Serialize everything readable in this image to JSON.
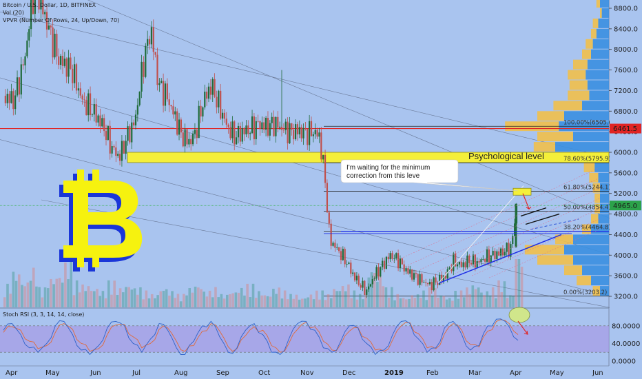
{
  "legend": {
    "symbol": "Bitcoin / U.S. Dollar, 1D, BITFINEX",
    "volume": "Vol (20)",
    "vpvr": "VPVR (Number Of Rows, 24, Up/Down, 70)",
    "stoch": "Stoch RSI (3, 3, 14, 14, close)"
  },
  "annotations": {
    "callout": [
      "I'm waiting for the minimum",
      "correction from this leve"
    ],
    "psychological": "Psychological level"
  },
  "colors": {
    "background": "#a9c4ef",
    "up": "#1f6b3a",
    "down": "#c0504d",
    "accent_blue": "#1f2ee6",
    "vpvr_up": "#3a8fe0",
    "vpvr_down": "#f1c04a",
    "stoch_k": "#2d62c9",
    "stoch_d": "#e06a3a",
    "resistance": "#e02424",
    "zone": "#f4ef3a",
    "logo_fill": "#f6f20f",
    "logo_shadow": "#1a36d8"
  },
  "chart_data": {
    "type": "candlestick",
    "price_axis": {
      "ticks": [
        "8800.0",
        "8400.0",
        "8000.0",
        "7600.0",
        "7200.0",
        "6800.0",
        "6400.0",
        "6000.0",
        "5600.0",
        "5200.0",
        "4800.0",
        "4400.0",
        "4000.0",
        "3600.0",
        "3200.0"
      ],
      "tick_values": [
        8800,
        8400,
        8000,
        7600,
        7200,
        6800,
        6400,
        6000,
        5600,
        5200,
        4800,
        4400,
        4000,
        3600,
        3200
      ],
      "range": [
        3000,
        9000
      ],
      "last_price": "4965.0",
      "resistance_price": "6461.5"
    },
    "stoch_axis": {
      "ticks": [
        "80.0000",
        "40.0000",
        "0.0000"
      ],
      "range": [
        0,
        100
      ]
    },
    "x_axis": {
      "labels": [
        "Apr",
        "May",
        "Jun",
        "Jul",
        "Aug",
        "Sep",
        "Oct",
        "Nov",
        "Dec",
        "2019",
        "Feb",
        "Mar",
        "Apr",
        "May",
        "Jun"
      ],
      "bold_label": "2019"
    },
    "fibonacci": [
      {
        "label": "100.00%(6505.6)",
        "value": 6505.6
      },
      {
        "label": "78.60%(5795.9)",
        "value": 5795.9
      },
      {
        "label": "61.80%(5244.1)",
        "value": 5244.1
      },
      {
        "label": "50.00%(4854.4)",
        "value": 4854.4
      },
      {
        "label": "38.20%(4464.8)",
        "value": 4464.8
      },
      {
        "label": "0.00%(3203.2)",
        "value": 3203.2
      }
    ],
    "psychological_zone": [
      5800,
      6000
    ],
    "trend_path": [
      [
        0,
        7100
      ],
      [
        4,
        7000
      ],
      [
        8,
        7800
      ],
      [
        12,
        9300
      ],
      [
        16,
        8600
      ],
      [
        21,
        7800
      ],
      [
        26,
        7600
      ],
      [
        30,
        7000
      ],
      [
        34,
        6800
      ],
      [
        38,
        6500
      ],
      [
        41,
        6100
      ],
      [
        44,
        5900
      ],
      [
        47,
        6300
      ],
      [
        50,
        6600
      ],
      [
        53,
        7700
      ],
      [
        56,
        8400
      ],
      [
        59,
        7300
      ],
      [
        62,
        7100
      ],
      [
        65,
        6700
      ],
      [
        68,
        6300
      ],
      [
        71,
        6200
      ],
      [
        73,
        6400
      ],
      [
        76,
        7000
      ],
      [
        79,
        7300
      ],
      [
        82,
        6900
      ],
      [
        85,
        6500
      ],
      [
        88,
        6300
      ],
      [
        91,
        6400
      ],
      [
        94,
        6450
      ],
      [
        97,
        6550
      ],
      [
        100,
        6500
      ],
      [
        103,
        6550
      ],
      [
        106,
        6460
      ],
      [
        109,
        6400
      ],
      [
        112,
        6420
      ],
      [
        115,
        6370
      ],
      [
        118,
        6400
      ],
      [
        120,
        6300
      ],
      [
        122,
        5600
      ],
      [
        124,
        4300
      ],
      [
        127,
        4100
      ],
      [
        130,
        3900
      ],
      [
        133,
        3600
      ],
      [
        136,
        3400
      ],
      [
        138,
        3300
      ],
      [
        141,
        3600
      ],
      [
        144,
        3800
      ],
      [
        147,
        4000
      ],
      [
        150,
        3900
      ],
      [
        153,
        3700
      ],
      [
        156,
        3600
      ],
      [
        159,
        3500
      ],
      [
        162,
        3420
      ],
      [
        165,
        3500
      ],
      [
        168,
        3600
      ],
      [
        171,
        3880
      ],
      [
        174,
        3800
      ],
      [
        177,
        3900
      ],
      [
        180,
        3850
      ],
      [
        183,
        3950
      ],
      [
        186,
        4000
      ],
      [
        189,
        4050
      ],
      [
        191,
        4100
      ],
      [
        193,
        4150
      ],
      [
        195,
        4965
      ]
    ],
    "volume_path": [
      0.35,
      0.55,
      0.4,
      0.6,
      0.3,
      0.45,
      0.5,
      0.7,
      0.4,
      0.35,
      0.3,
      0.25,
      0.4,
      0.3,
      0.35,
      0.3,
      0.25,
      0.2,
      0.3,
      0.25,
      0.2,
      0.3,
      0.35,
      0.25,
      0.3,
      0.2,
      0.25,
      0.3,
      0.35,
      0.25,
      0.2,
      0.3,
      0.25,
      0.2,
      0.15,
      0.2,
      0.25,
      0.2,
      0.3,
      0.35,
      0.25,
      0.2,
      0.6,
      0.5,
      0.3,
      0.2,
      0.15,
      0.2,
      0.25,
      0.3,
      0.2,
      0.15,
      0.25,
      0.3,
      0.35,
      0.25,
      0.3,
      0.4,
      0.2,
      0.9
    ],
    "stoch_k": [
      70,
      85,
      60,
      30,
      20,
      40,
      80,
      90,
      60,
      25,
      15,
      35,
      75,
      90,
      80,
      40,
      20,
      50,
      85,
      70,
      30,
      15,
      45,
      80,
      90,
      55,
      20,
      30,
      70,
      85,
      60,
      20,
      15,
      50,
      85,
      90,
      70,
      30,
      20,
      45,
      80,
      75,
      40,
      15,
      25,
      60,
      90,
      85,
      50,
      20,
      30,
      75,
      90,
      60,
      25,
      35,
      80,
      95,
      90,
      55
    ],
    "stoch_d": [
      65,
      78,
      70,
      45,
      28,
      35,
      65,
      85,
      72,
      40,
      22,
      28,
      60,
      82,
      83,
      55,
      30,
      40,
      72,
      75,
      45,
      22,
      35,
      68,
      85,
      68,
      32,
      28,
      58,
      78,
      70,
      35,
      20,
      40,
      72,
      88,
      78,
      45,
      25,
      38,
      68,
      76,
      52,
      25,
      22,
      48,
      80,
      87,
      62,
      30,
      28,
      62,
      85,
      70,
      38,
      32,
      68,
      90,
      92,
      68
    ]
  }
}
